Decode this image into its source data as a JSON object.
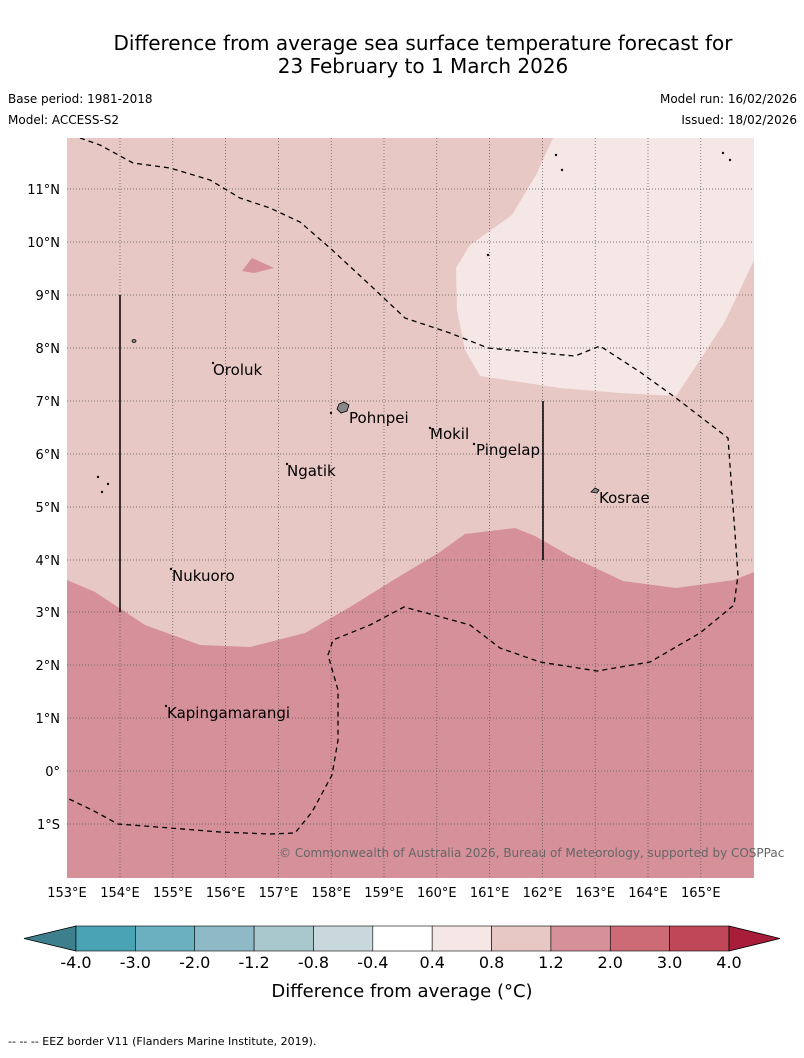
{
  "title_line1": "Difference from average sea surface temperature forecast for",
  "title_line2": "23 February to 1 March 2026",
  "base_period": "Base period: 1981-2018",
  "model": "Model: ACCESS-S2",
  "model_run": "Model run: 16/02/2026",
  "issued": "Issued: 18/02/2026",
  "lat_labels": [
    "11°N",
    "10°N",
    "9°N",
    "8°N",
    "7°N",
    "6°N",
    "5°N",
    "4°N",
    "3°N",
    "2°N",
    "1°N",
    "0°",
    "1°S"
  ],
  "lon_labels": [
    "153°E",
    "154°E",
    "155°E",
    "156°E",
    "157°E",
    "158°E",
    "159°E",
    "160°E",
    "161°E",
    "162°E",
    "163°E",
    "164°E",
    "165°E"
  ],
  "places": {
    "oroluk": "Oroluk",
    "pohnpei": "Pohnpei",
    "mokil": "Mokil",
    "pingelap": "Pingelap",
    "ngatik": "Ngatik",
    "kosrae": "Kosrae",
    "nukuoro": "Nukuoro",
    "kapingamarangi": "Kapingamarangi"
  },
  "copyright": "© Commonwealth of Australia 2026, Bureau of Meteorology, supported by COSPPac",
  "colorbar": {
    "ticks": [
      "-4.0",
      "-3.0",
      "-2.0",
      "-1.2",
      "-0.8",
      "-0.4",
      "0.4",
      "0.8",
      "1.2",
      "2.0",
      "3.0",
      "4.0"
    ],
    "title": "Difference from average (°C)",
    "colors": [
      "#3d7f8c",
      "#4aa3b5",
      "#6ab0c0",
      "#8dbac6",
      "#a9c8cc",
      "#c9d8dc",
      "#ffffff",
      "#f4e7e6",
      "#e8c8c4",
      "#d59099",
      "#cc6b76",
      "#bf4757",
      "#a81e3a"
    ]
  },
  "footnote": "-- -- -- EEZ border V11 (Flanders Marine Institute, 2019)."
}
